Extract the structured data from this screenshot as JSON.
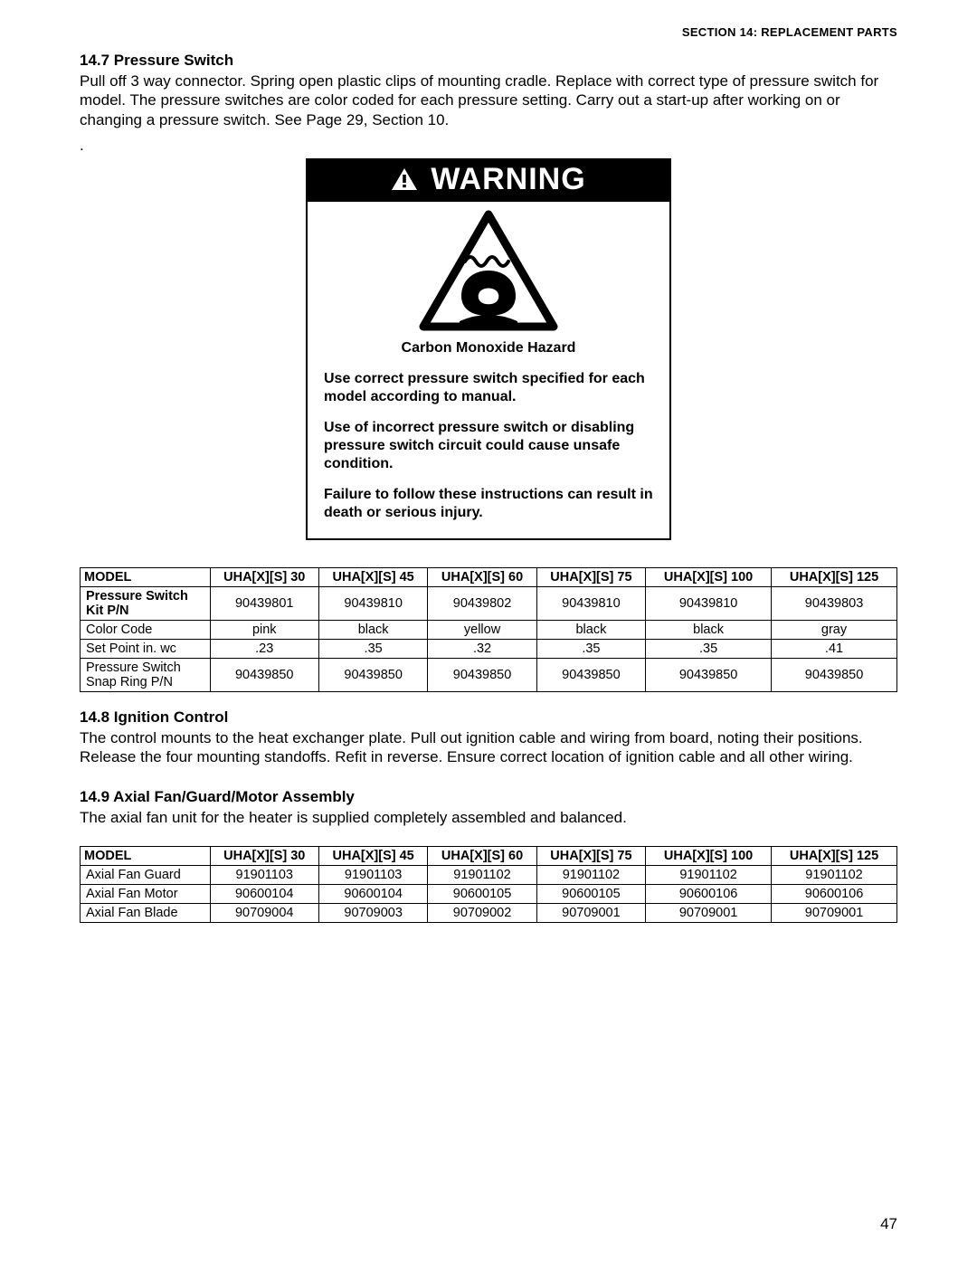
{
  "header": {
    "section_label": "SECTION 14: REPLACEMENT PARTS"
  },
  "s147": {
    "heading": "14.7 Pressure Switch",
    "body": "Pull off 3 way connector. Spring open plastic clips of mounting cradle. Replace with correct type of pressure switch for model. The pressure switches are color coded for each pressure setting. Carry out a start-up after working on or changing a pressure switch. See Page 29, Section 10."
  },
  "warning": {
    "signal_word": "WARNING",
    "hazard_title": "Carbon Monoxide Hazard",
    "p1": "Use correct pressure switch specified for each model according to manual.",
    "p2": "Use of incorrect pressure switch or disabling pressure switch circuit could cause unsafe condition.",
    "p3": "Failure to follow these instructions can result in death or serious injury.",
    "colors": {
      "banner_bg": "#000000",
      "banner_fg": "#ffffff",
      "border": "#000000"
    }
  },
  "table1": {
    "columns": [
      "MODEL",
      "UHA[X][S] 30",
      "UHA[X][S] 45",
      "UHA[X][S] 60",
      "UHA[X][S] 75",
      "UHA[X][S] 100",
      "UHA[X][S] 125"
    ],
    "rows": [
      {
        "label": "Pressure Switch Kit P/N",
        "bold": true,
        "cells": [
          "90439801",
          "90439810",
          "90439802",
          "90439810",
          "90439810",
          "90439803"
        ]
      },
      {
        "label": "Color Code",
        "bold": false,
        "cells": [
          "pink",
          "black",
          "yellow",
          "black",
          "black",
          "gray"
        ]
      },
      {
        "label": "Set Point in. wc",
        "bold": false,
        "cells": [
          ".23",
          ".35",
          ".32",
          ".35",
          ".35",
          ".41"
        ]
      },
      {
        "label": "Pressure Switch Snap Ring P/N",
        "bold": false,
        "cells": [
          "90439850",
          "90439850",
          "90439850",
          "90439850",
          "90439850",
          "90439850"
        ]
      }
    ],
    "col_widths_pct": [
      15.5,
      13,
      13,
      13,
      13,
      15,
      15
    ]
  },
  "s148": {
    "heading": "14.8 Ignition Control",
    "body": "The control mounts to the heat exchanger plate. Pull out ignition cable and wiring from board, noting their positions. Release the four mounting standoffs. Refit in reverse. Ensure correct location of ignition cable and all other wiring."
  },
  "s149": {
    "heading": "14.9 Axial Fan/Guard/Motor Assembly",
    "body": "The axial fan unit for the heater is supplied completely assembled and balanced."
  },
  "table2": {
    "columns": [
      "MODEL",
      "UHA[X][S] 30",
      "UHA[X][S] 45",
      "UHA[X][S] 60",
      "UHA[X][S] 75",
      "UHA[X][S] 100",
      "UHA[X][S] 125"
    ],
    "rows": [
      {
        "label": "Axial Fan Guard",
        "bold": false,
        "cells": [
          "91901103",
          "91901103",
          "91901102",
          "91901102",
          "91901102",
          "91901102"
        ]
      },
      {
        "label": "Axial Fan Motor",
        "bold": false,
        "cells": [
          "90600104",
          "90600104",
          "90600105",
          "90600105",
          "90600106",
          "90600106"
        ]
      },
      {
        "label": "Axial Fan Blade",
        "bold": false,
        "cells": [
          "90709004",
          "90709003",
          "90709002",
          "90709001",
          "90709001",
          "90709001"
        ]
      }
    ],
    "col_widths_pct": [
      15.5,
      13,
      13,
      13,
      13,
      15,
      15
    ]
  },
  "page_number": "47"
}
